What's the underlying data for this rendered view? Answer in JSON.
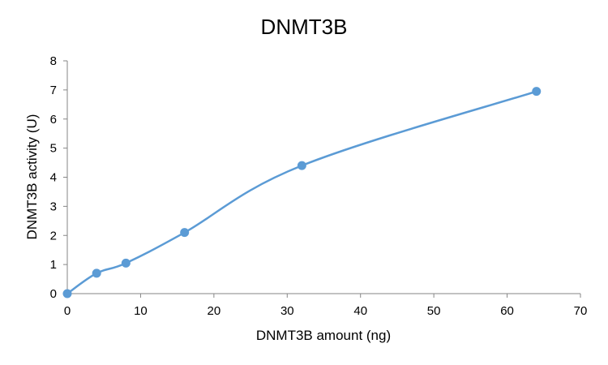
{
  "chart_data": {
    "type": "line",
    "title": "DNMT3B",
    "xlabel": "DNMT3B amount (ng)",
    "ylabel": "DNMT3B activity (U)",
    "xlim": [
      0,
      70
    ],
    "ylim": [
      0,
      8
    ],
    "x_ticks": [
      "0",
      "10",
      "20",
      "30",
      "40",
      "50",
      "60",
      "70"
    ],
    "y_ticks": [
      "0",
      "1",
      "2",
      "3",
      "4",
      "5",
      "6",
      "7",
      "8"
    ],
    "grid": false,
    "legend": "none",
    "smoothed": true,
    "series": [
      {
        "color": "#5B9BD5",
        "x": [
          0,
          4,
          8,
          16,
          32,
          64
        ],
        "y": [
          0,
          0.7,
          1.05,
          2.1,
          4.4,
          6.95
        ]
      }
    ]
  }
}
